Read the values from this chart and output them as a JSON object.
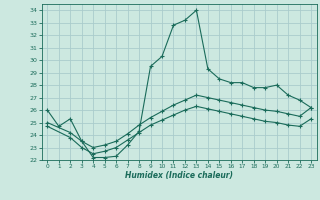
{
  "xlabel": "Humidex (Indice chaleur)",
  "bg_color": "#cce8e0",
  "grid_color": "#aacccc",
  "line_color": "#1a6b5a",
  "xlim": [
    -0.5,
    23.5
  ],
  "ylim": [
    22,
    34.5
  ],
  "yticks": [
    22,
    23,
    24,
    25,
    26,
    27,
    28,
    29,
    30,
    31,
    32,
    33,
    34
  ],
  "xticks": [
    0,
    1,
    2,
    3,
    4,
    5,
    6,
    7,
    8,
    9,
    10,
    11,
    12,
    13,
    14,
    15,
    16,
    17,
    18,
    19,
    20,
    21,
    22,
    23
  ],
  "curve1_x": [
    0,
    1,
    2,
    3,
    4,
    5,
    6,
    7,
    8,
    9,
    10,
    11,
    12,
    13,
    14,
    15,
    16,
    17,
    18,
    19,
    20,
    21,
    22,
    23
  ],
  "curve1_y": [
    26.0,
    24.7,
    25.3,
    23.5,
    22.2,
    22.2,
    22.3,
    23.2,
    24.3,
    29.5,
    30.3,
    32.8,
    33.2,
    34.0,
    29.3,
    28.5,
    28.2,
    28.2,
    27.8,
    27.8,
    28.0,
    27.2,
    26.8,
    26.2
  ],
  "curve2_x": [
    0,
    2,
    3,
    4,
    5,
    6,
    7,
    8,
    9,
    10,
    11,
    12,
    13,
    14,
    15,
    16,
    17,
    18,
    19,
    20,
    21,
    22,
    23
  ],
  "curve2_y": [
    25.0,
    24.2,
    23.5,
    23.0,
    23.2,
    23.5,
    24.1,
    24.8,
    25.4,
    25.9,
    26.4,
    26.8,
    27.2,
    27.0,
    26.8,
    26.6,
    26.4,
    26.2,
    26.0,
    25.9,
    25.7,
    25.5,
    26.2
  ],
  "curve3_x": [
    0,
    2,
    3,
    4,
    5,
    6,
    7,
    8,
    9,
    10,
    11,
    12,
    13,
    14,
    15,
    16,
    17,
    18,
    19,
    20,
    21,
    22,
    23
  ],
  "curve3_y": [
    24.7,
    23.8,
    23.0,
    22.5,
    22.7,
    23.0,
    23.6,
    24.2,
    24.8,
    25.2,
    25.6,
    26.0,
    26.3,
    26.1,
    25.9,
    25.7,
    25.5,
    25.3,
    25.1,
    25.0,
    24.8,
    24.7,
    25.3
  ]
}
